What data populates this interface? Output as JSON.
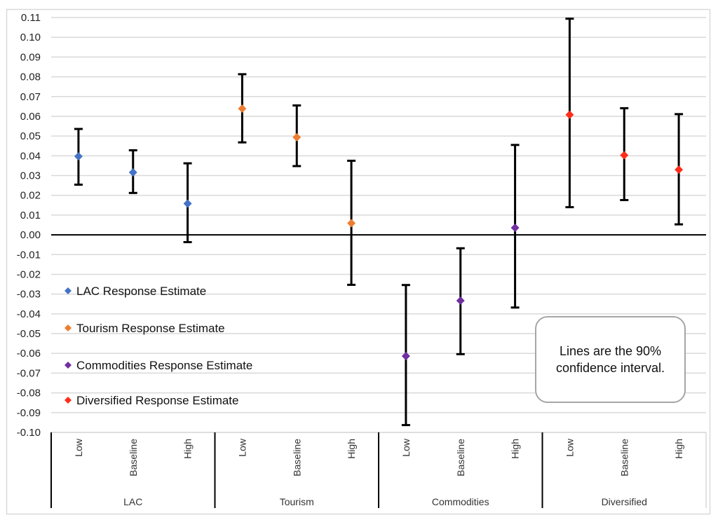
{
  "chart_data": {
    "type": "scatter",
    "title": "",
    "xlabel": "",
    "ylabel": "",
    "ylim": [
      -0.1,
      0.11
    ],
    "y_ticks": [
      "0.11",
      "0.10",
      "0.09",
      "0.08",
      "0.07",
      "0.06",
      "0.05",
      "0.04",
      "0.03",
      "0.02",
      "0.01",
      "0.00",
      "-0.01",
      "-0.02",
      "-0.03",
      "-0.04",
      "-0.05",
      "-0.06",
      "-0.07",
      "-0.08",
      "-0.09",
      "-0.10"
    ],
    "grid": true,
    "zero_line": true,
    "groups": [
      "LAC",
      "Tourism",
      "Commodities",
      "Diversified"
    ],
    "scenarios": [
      "Low",
      "Baseline",
      "High"
    ],
    "legend_position": "left-middle",
    "series": [
      {
        "name": "LAC Response Estimate",
        "group": "LAC",
        "color": "#4472C4",
        "points": [
          {
            "scenario": "Low",
            "estimate": 0.0397,
            "ci_low": 0.0254,
            "ci_high": 0.0536
          },
          {
            "scenario": "Baseline",
            "estimate": 0.0316,
            "ci_low": 0.0212,
            "ci_high": 0.0428
          },
          {
            "scenario": "High",
            "estimate": 0.0158,
            "ci_low": -0.0037,
            "ci_high": 0.0362
          }
        ]
      },
      {
        "name": "Tourism Response Estimate",
        "group": "Tourism",
        "color": "#ED7D31",
        "points": [
          {
            "scenario": "Low",
            "estimate": 0.0639,
            "ci_low": 0.0468,
            "ci_high": 0.0813
          },
          {
            "scenario": "Baseline",
            "estimate": 0.0494,
            "ci_low": 0.0348,
            "ci_high": 0.0655
          },
          {
            "scenario": "High",
            "estimate": 0.0059,
            "ci_low": -0.0253,
            "ci_high": 0.0375
          }
        ]
      },
      {
        "name": "Commodities Response Estimate",
        "group": "Commodities",
        "color": "#7030A0",
        "points": [
          {
            "scenario": "Low",
            "estimate": -0.0614,
            "ci_low": -0.0963,
            "ci_high": -0.0254
          },
          {
            "scenario": "Baseline",
            "estimate": -0.0333,
            "ci_low": -0.0604,
            "ci_high": -0.0068
          },
          {
            "scenario": "High",
            "estimate": 0.0036,
            "ci_low": -0.0368,
            "ci_high": 0.0455
          }
        ]
      },
      {
        "name": "Diversified Response Estimate",
        "group": "Diversified",
        "color": "#FF2D1A",
        "points": [
          {
            "scenario": "Low",
            "estimate": 0.0608,
            "ci_low": 0.014,
            "ci_high": 0.1094
          },
          {
            "scenario": "Baseline",
            "estimate": 0.0403,
            "ci_low": 0.0176,
            "ci_high": 0.0641
          },
          {
            "scenario": "High",
            "estimate": 0.033,
            "ci_low": 0.0053,
            "ci_high": 0.0611
          }
        ]
      }
    ],
    "annotations": [
      "Lines are the 90% confidence interval."
    ]
  },
  "note": {
    "text": "Lines are the 90% confidence interval."
  }
}
